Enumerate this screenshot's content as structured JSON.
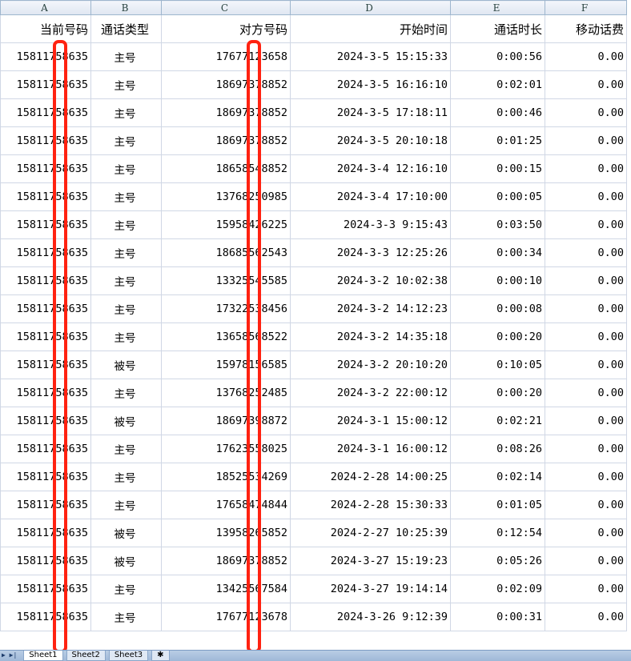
{
  "columns": [
    "A",
    "B",
    "C",
    "D",
    "E",
    "F"
  ],
  "headers": [
    "当前号码",
    "通话类型",
    "对方号码",
    "开始时间",
    "通话时长",
    "移动话费"
  ],
  "rows": [
    [
      "15811758635",
      "主号",
      "17677123658",
      "2024-3-5 15:15:33",
      "0:00:56",
      "0.00"
    ],
    [
      "15811758635",
      "主号",
      "18697378852",
      "2024-3-5 16:16:10",
      "0:02:01",
      "0.00"
    ],
    [
      "15811758635",
      "主号",
      "18697378852",
      "2024-3-5 17:18:11",
      "0:00:46",
      "0.00"
    ],
    [
      "15811758635",
      "主号",
      "18697378852",
      "2024-3-5 20:10:18",
      "0:01:25",
      "0.00"
    ],
    [
      "15811758635",
      "主号",
      "18658548852",
      "2024-3-4 12:16:10",
      "0:00:15",
      "0.00"
    ],
    [
      "15811758635",
      "主号",
      "13768250985",
      "2024-3-4 17:10:00",
      "0:00:05",
      "0.00"
    ],
    [
      "15811758635",
      "主号",
      "15958426225",
      "2024-3-3 9:15:43",
      "0:03:50",
      "0.00"
    ],
    [
      "15811758635",
      "主号",
      "18685562543",
      "2024-3-3 12:25:26",
      "0:00:34",
      "0.00"
    ],
    [
      "15811758635",
      "主号",
      "13325545585",
      "2024-3-2 10:02:38",
      "0:00:10",
      "0.00"
    ],
    [
      "15811758635",
      "主号",
      "17322538456",
      "2024-3-2 14:12:23",
      "0:00:08",
      "0.00"
    ],
    [
      "15811758635",
      "主号",
      "13658568522",
      "2024-3-2 14:35:18",
      "0:00:20",
      "0.00"
    ],
    [
      "15811758635",
      "被号",
      "15978156585",
      "2024-3-2 20:10:20",
      "0:10:05",
      "0.00"
    ],
    [
      "15811758635",
      "主号",
      "13768252485",
      "2024-3-2 22:00:12",
      "0:00:20",
      "0.00"
    ],
    [
      "15811758635",
      "被号",
      "18697398872",
      "2024-3-1 15:00:12",
      "0:02:21",
      "0.00"
    ],
    [
      "15811758635",
      "主号",
      "17623558025",
      "2024-3-1 16:00:12",
      "0:08:26",
      "0.00"
    ],
    [
      "15811758635",
      "主号",
      "18525534269",
      "2024-2-28 14:00:25",
      "0:02:14",
      "0.00"
    ],
    [
      "15811758635",
      "主号",
      "17658474844",
      "2024-2-28 15:30:33",
      "0:01:05",
      "0.00"
    ],
    [
      "15811758635",
      "被号",
      "13958265852",
      "2024-2-27 10:25:39",
      "0:12:54",
      "0.00"
    ],
    [
      "15811758635",
      "被号",
      "18697378852",
      "2024-3-27 15:19:23",
      "0:05:26",
      "0.00"
    ],
    [
      "15811758635",
      "主号",
      "13425567584",
      "2024-3-27 19:14:14",
      "0:02:09",
      "0.00"
    ],
    [
      "15811758635",
      "主号",
      "17677123678",
      "2024-3-26 9:12:39",
      "0:00:31",
      "0.00"
    ]
  ],
  "sheet_tabs": [
    "Sheet1",
    "Sheet2",
    "Sheet3"
  ],
  "colors": {
    "highlight": "#ff2211",
    "grid": "#d0d7e5"
  }
}
